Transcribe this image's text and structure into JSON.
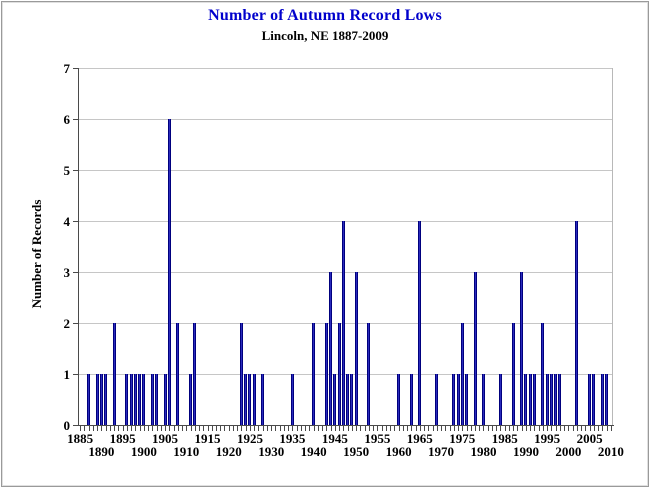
{
  "chart_data": {
    "type": "bar",
    "title": "Number of Autumn Record Lows",
    "subtitle": "Lincoln, NE 1887-2009",
    "ylabel": "Number of Records",
    "xlabel": "",
    "xlim": [
      1884.5,
      2010.5
    ],
    "ylim": [
      0,
      7
    ],
    "grid": true,
    "legend": "none",
    "bar_color": "#2b2bbd",
    "title_color": "#0000cc",
    "y_ticks": [
      0,
      1,
      2,
      3,
      4,
      5,
      6,
      7
    ],
    "x_tick_years": [
      1885,
      1890,
      1895,
      1900,
      1905,
      1910,
      1915,
      1920,
      1925,
      1930,
      1935,
      1940,
      1945,
      1950,
      1955,
      1960,
      1965,
      1970,
      1975,
      1980,
      1985,
      1990,
      1995,
      2000,
      2005,
      2010
    ],
    "points": [
      {
        "year": 1887,
        "count": 1
      },
      {
        "year": 1889,
        "count": 1
      },
      {
        "year": 1890,
        "count": 1
      },
      {
        "year": 1891,
        "count": 1
      },
      {
        "year": 1893,
        "count": 2
      },
      {
        "year": 1896,
        "count": 1
      },
      {
        "year": 1897,
        "count": 1
      },
      {
        "year": 1898,
        "count": 1
      },
      {
        "year": 1899,
        "count": 1
      },
      {
        "year": 1900,
        "count": 1
      },
      {
        "year": 1902,
        "count": 1
      },
      {
        "year": 1903,
        "count": 1
      },
      {
        "year": 1905,
        "count": 1
      },
      {
        "year": 1906,
        "count": 6
      },
      {
        "year": 1908,
        "count": 2
      },
      {
        "year": 1911,
        "count": 1
      },
      {
        "year": 1912,
        "count": 2
      },
      {
        "year": 1923,
        "count": 2
      },
      {
        "year": 1924,
        "count": 1
      },
      {
        "year": 1925,
        "count": 1
      },
      {
        "year": 1926,
        "count": 1
      },
      {
        "year": 1928,
        "count": 1
      },
      {
        "year": 1935,
        "count": 1
      },
      {
        "year": 1940,
        "count": 2
      },
      {
        "year": 1943,
        "count": 2
      },
      {
        "year": 1944,
        "count": 3
      },
      {
        "year": 1945,
        "count": 1
      },
      {
        "year": 1946,
        "count": 2
      },
      {
        "year": 1947,
        "count": 4
      },
      {
        "year": 1948,
        "count": 1
      },
      {
        "year": 1949,
        "count": 1
      },
      {
        "year": 1950,
        "count": 3
      },
      {
        "year": 1953,
        "count": 2
      },
      {
        "year": 1960,
        "count": 1
      },
      {
        "year": 1963,
        "count": 1
      },
      {
        "year": 1965,
        "count": 4
      },
      {
        "year": 1969,
        "count": 1
      },
      {
        "year": 1973,
        "count": 1
      },
      {
        "year": 1974,
        "count": 1
      },
      {
        "year": 1975,
        "count": 2
      },
      {
        "year": 1976,
        "count": 1
      },
      {
        "year": 1978,
        "count": 3
      },
      {
        "year": 1980,
        "count": 1
      },
      {
        "year": 1984,
        "count": 1
      },
      {
        "year": 1987,
        "count": 2
      },
      {
        "year": 1989,
        "count": 3
      },
      {
        "year": 1990,
        "count": 1
      },
      {
        "year": 1991,
        "count": 1
      },
      {
        "year": 1992,
        "count": 1
      },
      {
        "year": 1994,
        "count": 2
      },
      {
        "year": 1995,
        "count": 1
      },
      {
        "year": 1996,
        "count": 1
      },
      {
        "year": 1997,
        "count": 1
      },
      {
        "year": 1998,
        "count": 1
      },
      {
        "year": 2002,
        "count": 4
      },
      {
        "year": 2005,
        "count": 1
      },
      {
        "year": 2006,
        "count": 1
      },
      {
        "year": 2008,
        "count": 1
      },
      {
        "year": 2009,
        "count": 1
      }
    ]
  }
}
